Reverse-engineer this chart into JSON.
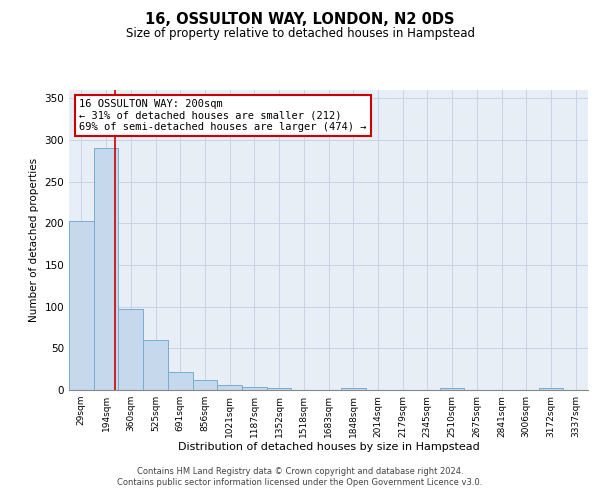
{
  "title": "16, OSSULTON WAY, LONDON, N2 0DS",
  "subtitle": "Size of property relative to detached houses in Hampstead",
  "xlabel": "Distribution of detached houses by size in Hampstead",
  "ylabel": "Number of detached properties",
  "bar_labels": [
    "29sqm",
    "194sqm",
    "360sqm",
    "525sqm",
    "691sqm",
    "856sqm",
    "1021sqm",
    "1187sqm",
    "1352sqm",
    "1518sqm",
    "1683sqm",
    "1848sqm",
    "2014sqm",
    "2179sqm",
    "2345sqm",
    "2510sqm",
    "2675sqm",
    "2841sqm",
    "3006sqm",
    "3172sqm",
    "3337sqm"
  ],
  "bar_values": [
    203,
    290,
    97,
    60,
    22,
    12,
    6,
    4,
    3,
    0,
    0,
    2,
    0,
    0,
    0,
    2,
    0,
    0,
    0,
    2,
    0
  ],
  "bar_color": "#c5d8ec",
  "bar_edge_color": "#7aacd0",
  "grid_color": "#c8d4e4",
  "bg_color": "#e8eef6",
  "red_line_x": 1.35,
  "annotation_text": "16 OSSULTON WAY: 200sqm\n← 31% of detached houses are smaller (212)\n69% of semi-detached houses are larger (474) →",
  "annotation_box_color": "#ffffff",
  "annotation_border_color": "#cc0000",
  "footer_line1": "Contains HM Land Registry data © Crown copyright and database right 2024.",
  "footer_line2": "Contains public sector information licensed under the Open Government Licence v3.0.",
  "ylim": [
    0,
    360
  ],
  "yticks": [
    0,
    50,
    100,
    150,
    200,
    250,
    300,
    350
  ]
}
